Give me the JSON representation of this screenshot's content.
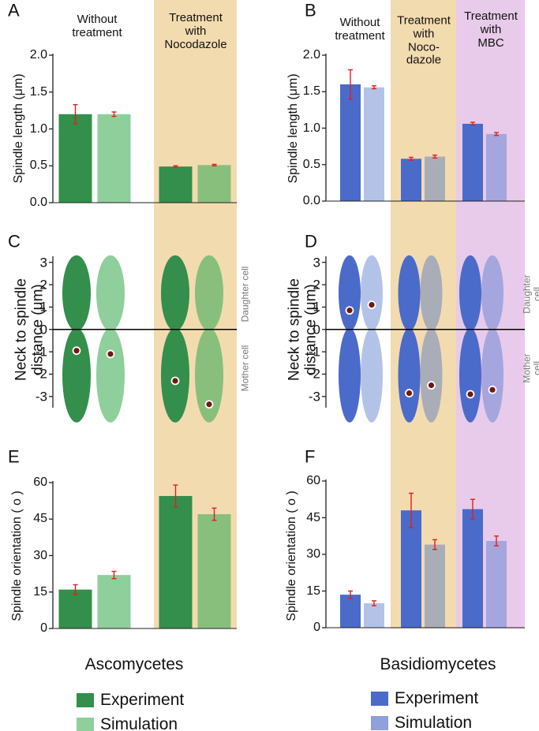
{
  "chart_data": [
    {
      "type": "bar",
      "panel": "A",
      "ylabel": "Spindle length (μm)",
      "categories": [
        "Without\ntreatment",
        "Treatment\nwith\nNocodazole"
      ],
      "band_colors": [
        "none",
        "#f3dbb0"
      ],
      "ylim": [
        0,
        2
      ],
      "yticks": [
        {
          "value": 0,
          "label": "0.0"
        },
        {
          "value": 0.5,
          "label": "0.5"
        },
        {
          "value": 1,
          "label": "1.0"
        },
        {
          "value": 1.5,
          "label": "1.5"
        },
        {
          "value": 2,
          "label": "2.0"
        }
      ],
      "error_color": "#e0201b",
      "series": [
        {
          "name": "Experiment",
          "color": "#338f4b",
          "colors": [
            "#338f4b",
            "#338f4b"
          ],
          "values": [
            1.2,
            0.49
          ],
          "errors": [
            0.13,
            0.01
          ]
        },
        {
          "name": "Simulation",
          "color": "#8ecf9b",
          "colors": [
            "#8ecf9b",
            "#88bf7c"
          ],
          "values": [
            1.2,
            0.51
          ],
          "errors": [
            0.03,
            0.01
          ]
        }
      ]
    },
    {
      "type": "bar",
      "panel": "B",
      "ylabel": "Spindle length (μm)",
      "categories": [
        "Without\ntreatment",
        "Treatment\nwith\nNoco-\ndazole",
        "Treatment\nwith\nMBC"
      ],
      "band_colors": [
        "none",
        "#f3dbb0",
        "#e8cbea"
      ],
      "ylim": [
        0,
        2
      ],
      "yticks": [
        {
          "value": 0,
          "label": "0.0"
        },
        {
          "value": 0.5,
          "label": "0.5"
        },
        {
          "value": 1,
          "label": "1.0"
        },
        {
          "value": 1.5,
          "label": "1.5"
        },
        {
          "value": 2,
          "label": "2.0"
        }
      ],
      "error_color": "#e0201b",
      "series": [
        {
          "name": "Experiment",
          "color": "#4a6bc9",
          "colors": [
            "#4a6bc9",
            "#4a6bc9",
            "#4a6bc9"
          ],
          "values": [
            1.6,
            0.58,
            1.06
          ],
          "errors": [
            0.2,
            0.02,
            0.02
          ]
        },
        {
          "name": "Simulation",
          "color": "#8fa0da",
          "colors": [
            "#b3c3e8",
            "#a9adb8",
            "#a5a6de"
          ],
          "values": [
            1.56,
            0.61,
            0.92
          ],
          "errors": [
            0.02,
            0.02,
            0.02
          ]
        }
      ]
    },
    {
      "type": "dot",
      "panel": "C",
      "ylabel": "Neck to spindle\ndistance (μm)",
      "upper_label": "Daughter cell",
      "lower_label": "Mother cell",
      "ylim": [
        -3.5,
        3.2
      ],
      "yticks": [
        3,
        2,
        1,
        0,
        -1,
        -2,
        -3
      ],
      "error_color": "#e0201b",
      "marker_color": "#6e1a12",
      "series": [
        {
          "name": "Experiment",
          "color": "#338f4b",
          "colors": [
            "#338f4b",
            "#338f4b"
          ],
          "values": [
            -0.95,
            -2.3
          ],
          "errors": [
            0.05,
            0.1
          ]
        },
        {
          "name": "Simulation",
          "color": "#8ecf9b",
          "colors": [
            "#8ecf9b",
            "#88bf7c"
          ],
          "values": [
            -1.1,
            -3.35
          ],
          "errors": [
            0.05,
            0.05
          ]
        }
      ]
    },
    {
      "type": "dot",
      "panel": "D",
      "ylabel": "Neck to spindle\ndistance (μm)",
      "upper_label": "Daughter cell",
      "lower_label": "Mother cell",
      "ylim": [
        -3.5,
        3.2
      ],
      "yticks": [
        3,
        2,
        1,
        0,
        -1,
        -2,
        -3
      ],
      "error_color": "#e0201b",
      "marker_color": "#6e1a12",
      "series": [
        {
          "name": "Experiment",
          "color": "#4a6bc9",
          "colors": [
            "#4a6bc9",
            "#4a6bc9",
            "#4a6bc9"
          ],
          "values": [
            0.85,
            -2.85,
            -2.9
          ],
          "errors": [
            0.05,
            0.15,
            0.15
          ]
        },
        {
          "name": "Simulation",
          "color": "#8fa0da",
          "colors": [
            "#b3c3e8",
            "#a9adb8",
            "#a5a6de"
          ],
          "values": [
            1.1,
            -2.5,
            -2.7
          ],
          "errors": [
            0.05,
            0.1,
            0.1
          ]
        }
      ]
    },
    {
      "type": "bar",
      "panel": "E",
      "ylabel": "Spindle orientation ( o )",
      "ylim": [
        0,
        60
      ],
      "yticks": [
        0,
        15,
        30,
        45,
        60
      ],
      "error_color": "#e0201b",
      "series": [
        {
          "name": "Experiment",
          "color": "#338f4b",
          "colors": [
            "#338f4b",
            "#338f4b"
          ],
          "values": [
            16,
            54.5
          ],
          "errors": [
            2,
            4.5
          ]
        },
        {
          "name": "Simulation",
          "color": "#8ecf9b",
          "colors": [
            "#8ecf9b",
            "#88bf7c"
          ],
          "values": [
            22,
            47
          ],
          "errors": [
            1.5,
            2.5
          ]
        }
      ]
    },
    {
      "type": "bar",
      "panel": "F",
      "ylabel": "Spindle orientation ( o )",
      "ylim": [
        0,
        60
      ],
      "yticks": [
        0,
        15,
        30,
        45,
        60
      ],
      "error_color": "#e0201b",
      "series": [
        {
          "name": "Experiment",
          "color": "#4a6bc9",
          "colors": [
            "#4a6bc9",
            "#4a6bc9",
            "#4a6bc9"
          ],
          "values": [
            13.5,
            48,
            48.5
          ],
          "errors": [
            1.5,
            7,
            4
          ]
        },
        {
          "name": "Simulation",
          "color": "#8fa0da",
          "colors": [
            "#b3c3e8",
            "#a9adb8",
            "#a5a6de"
          ],
          "values": [
            10,
            34,
            35.5
          ],
          "errors": [
            1,
            2,
            2
          ]
        }
      ]
    }
  ],
  "footer": {
    "left": "Ascomycetes",
    "right": "Basidiomycetes"
  }
}
